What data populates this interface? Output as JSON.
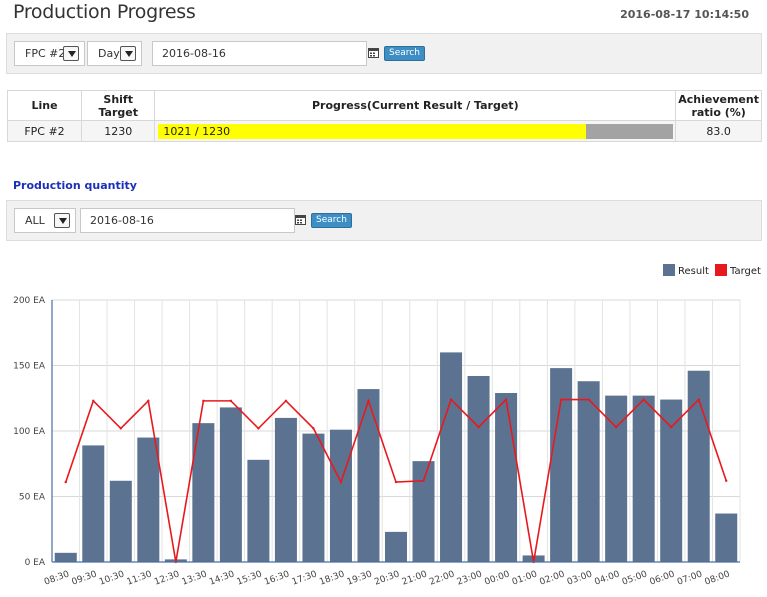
{
  "header": {
    "title": "Production Progress",
    "datetime": "2016-08-17 10:14:50"
  },
  "top_filter": {
    "line_select": "FPC #2",
    "period_select": "Day",
    "date": "2016-08-16",
    "search_label": "Search"
  },
  "progress_table": {
    "headers": {
      "line": "Line",
      "shift_target": "Shift Target",
      "progress": "Progress(Current Result / Target)",
      "achievement_1": "Achievement",
      "achievement_2": "ratio (%)"
    },
    "rows": [
      {
        "line": "FPC #2",
        "shift_target": "1230",
        "progress_text": "1021 / 1230",
        "progress_fraction": 0.83,
        "achievement": "83.0"
      }
    ]
  },
  "section": {
    "title": "Production quantity"
  },
  "bottom_filter": {
    "scope_select": "ALL",
    "date": "2016-08-16",
    "search_label": "Search"
  },
  "colors": {
    "result_bar": "#5b7390",
    "target_line": "#e8191e",
    "progress_fill": "#ffff00",
    "progress_track": "#a3a3a3",
    "accent_button": "#3d8ec5",
    "section_title": "#1c2fb8"
  },
  "chart_data": {
    "type": "bar",
    "legend": {
      "placement": "top-right",
      "entries": [
        "Result",
        "Target"
      ]
    },
    "y_ticks": [
      "0 EA",
      "50 EA",
      "100 EA",
      "150 EA",
      "200 EA"
    ],
    "ylim": [
      0,
      200
    ],
    "grid": true,
    "categories": [
      "08:30",
      "09:30",
      "10:30",
      "11:30",
      "12:30",
      "13:30",
      "14:30",
      "15:30",
      "16:30",
      "17:30",
      "18:30",
      "19:30",
      "20:30",
      "21:00",
      "22:00",
      "23:00",
      "00:00",
      "01:00",
      "02:00",
      "03:00",
      "04:00",
      "05:00",
      "06:00",
      "07:00",
      "08:00"
    ],
    "series": [
      {
        "name": "Result",
        "kind": "bar",
        "values": [
          7,
          89,
          62,
          95,
          2,
          106,
          118,
          78,
          110,
          98,
          101,
          132,
          23,
          77,
          160,
          142,
          129,
          5,
          148,
          138,
          127,
          127,
          124,
          146,
          37
        ]
      },
      {
        "name": "Target",
        "kind": "line",
        "values": [
          61,
          123,
          102,
          123,
          0,
          123,
          123,
          102,
          123,
          102,
          61,
          123,
          61,
          62,
          124,
          103,
          124,
          0,
          124,
          124,
          103,
          124,
          103,
          124,
          62
        ]
      }
    ]
  }
}
